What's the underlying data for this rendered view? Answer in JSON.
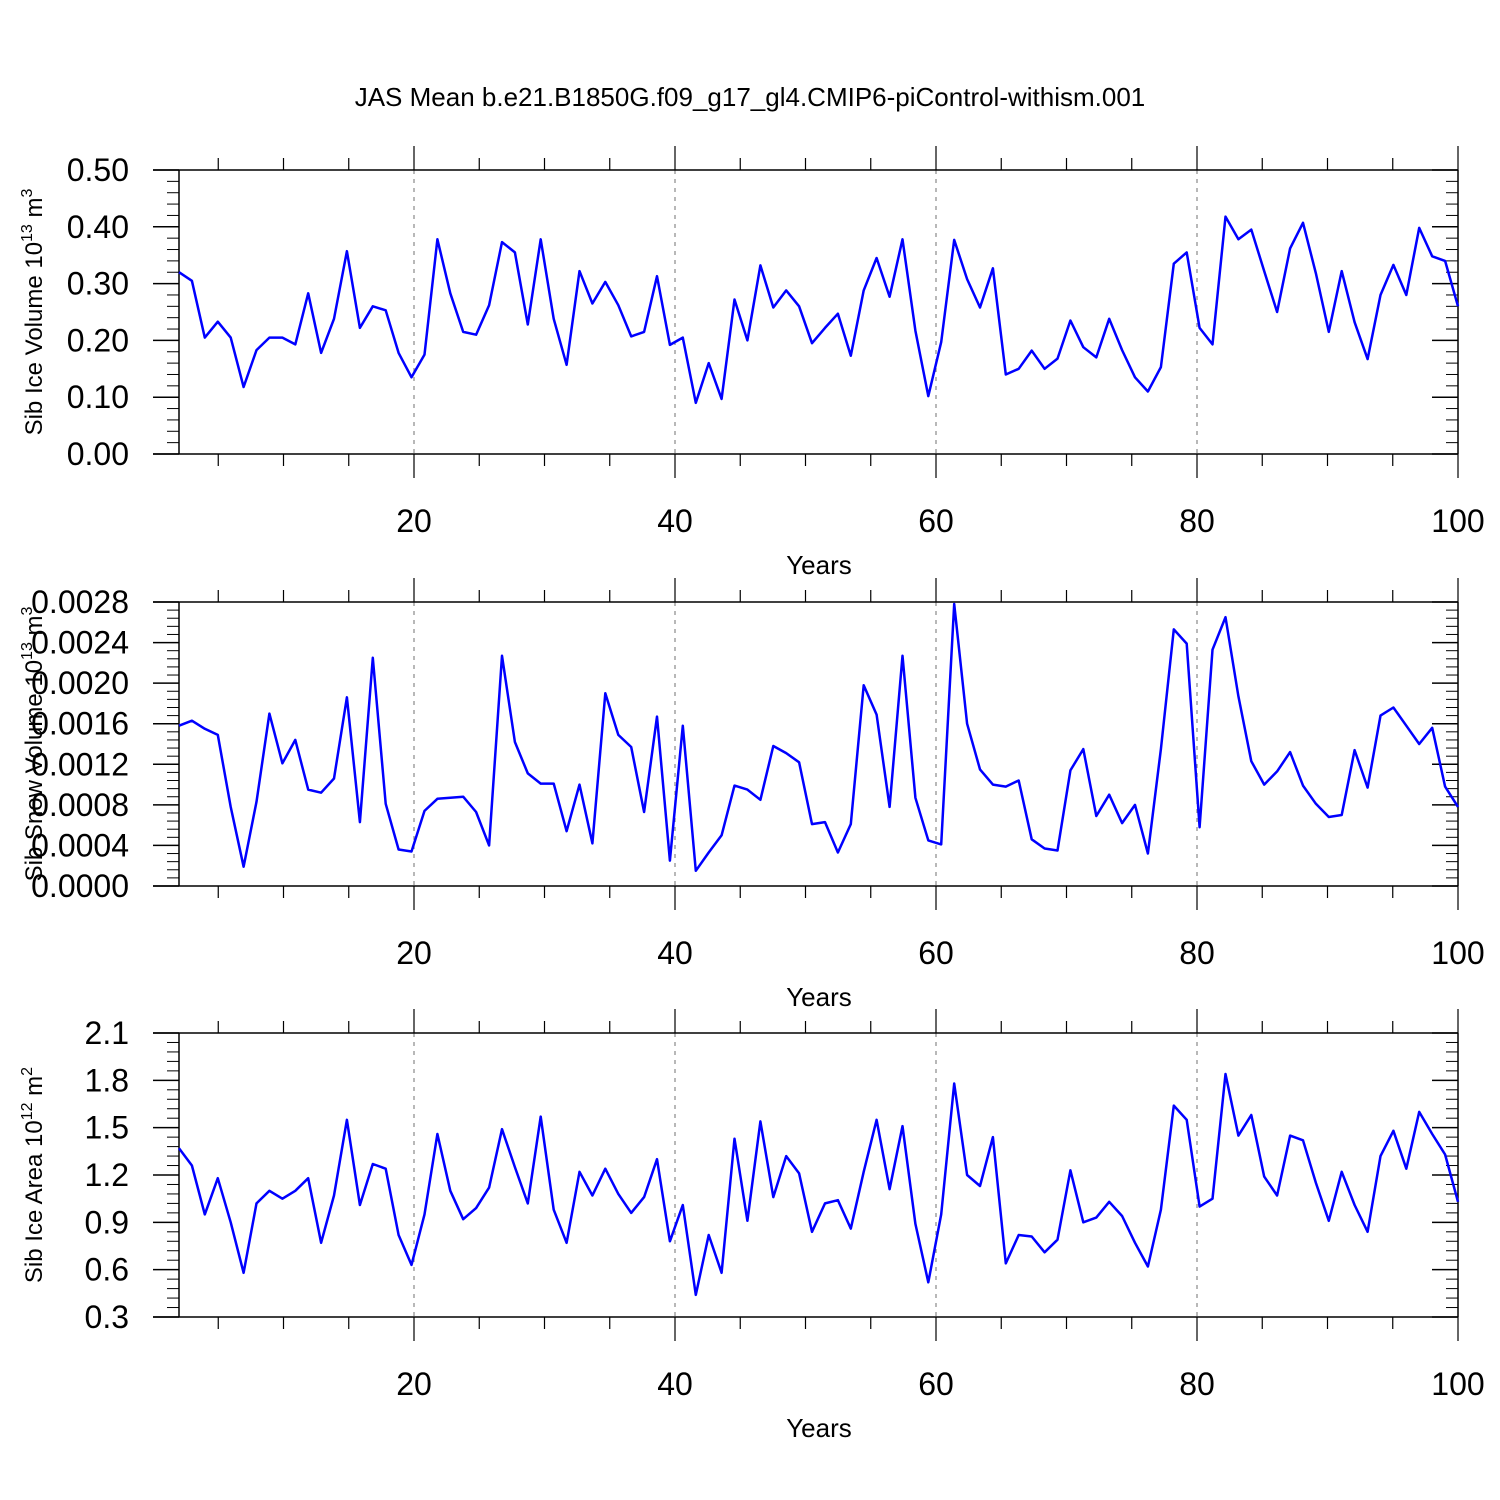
{
  "title": "JAS Mean b.e21.B1850G.f09_g17_gl4.CMIP6-piControl-withism.001",
  "colors": {
    "series": "#0000ff",
    "axis": "#000000",
    "grid": "#888888"
  },
  "chart_data": [
    {
      "type": "line",
      "ylabel_main": "Sib Ice Volume 10",
      "ylabel_exp": "13",
      "ylabel_unit": " m",
      "ylabel_unit_exp": "3",
      "xlabel": "Years",
      "xlim": [
        0,
        100
      ],
      "ylim": [
        0,
        0.5
      ],
      "yticks": [
        "0.00",
        "0.10",
        "0.20",
        "0.30",
        "0.40",
        "0.50"
      ],
      "xticks": [
        "20",
        "40",
        "60",
        "80",
        "100"
      ],
      "grid_x": [
        20,
        40,
        60,
        80
      ],
      "x_start": 0,
      "values": [
        0.32,
        0.305,
        0.205,
        0.233,
        0.205,
        0.118,
        0.183,
        0.205,
        0.205,
        0.193,
        0.283,
        0.178,
        0.238,
        0.357,
        0.222,
        0.26,
        0.253,
        0.178,
        0.135,
        0.175,
        0.378,
        0.283,
        0.215,
        0.21,
        0.262,
        0.373,
        0.355,
        0.228,
        0.378,
        0.238,
        0.157,
        0.322,
        0.265,
        0.303,
        0.262,
        0.207,
        0.215,
        0.313,
        0.192,
        0.205,
        0.09,
        0.16,
        0.097,
        0.272,
        0.2,
        0.332,
        0.258,
        0.288,
        0.26,
        0.195,
        0.222,
        0.247,
        0.173,
        0.288,
        0.345,
        0.277,
        0.378,
        0.217,
        0.102,
        0.197,
        0.377,
        0.308,
        0.258,
        0.327,
        0.14,
        0.15,
        0.182,
        0.15,
        0.168,
        0.235,
        0.188,
        0.17,
        0.238,
        0.183,
        0.135,
        0.11,
        0.153,
        0.335,
        0.355,
        0.222,
        0.193,
        0.418,
        0.378,
        0.395,
        0.322,
        0.25,
        0.362,
        0.407,
        0.318,
        0.215,
        0.322,
        0.232,
        0.167,
        0.28,
        0.333,
        0.28,
        0.398,
        0.348,
        0.34,
        0.26
      ]
    },
    {
      "type": "line",
      "ylabel_main": "Sib Snow Volume 10",
      "ylabel_exp": "13",
      "ylabel_unit": " m",
      "ylabel_unit_exp": "3",
      "xlabel": "Years",
      "xlim": [
        0,
        100
      ],
      "ylim": [
        0,
        0.0028
      ],
      "yticks": [
        "0.0000",
        "0.0004",
        "0.0008",
        "0.0012",
        "0.0016",
        "0.0020",
        "0.0024",
        "0.0028"
      ],
      "xticks": [
        "20",
        "40",
        "60",
        "80",
        "100"
      ],
      "grid_x": [
        20,
        40,
        60,
        80
      ],
      "x_start": 0,
      "values": [
        0.00158,
        0.00163,
        0.00155,
        0.00149,
        0.00078,
        0.00019,
        0.00083,
        0.0017,
        0.00121,
        0.00144,
        0.00095,
        0.00092,
        0.00106,
        0.00186,
        0.00063,
        0.00225,
        0.00081,
        0.00036,
        0.00034,
        0.00074,
        0.00086,
        0.00087,
        0.00088,
        0.00073,
        0.0004,
        0.00227,
        0.00142,
        0.00111,
        0.00101,
        0.00101,
        0.00054,
        0.001,
        0.00042,
        0.0019,
        0.00149,
        0.00137,
        0.00073,
        0.00167,
        0.00025,
        0.00158,
        0.00015,
        0.00033,
        0.0005,
        0.00099,
        0.00095,
        0.00085,
        0.00138,
        0.00131,
        0.00122,
        0.00061,
        0.00063,
        0.00033,
        0.00061,
        0.00198,
        0.00169,
        0.00078,
        0.00227,
        0.00087,
        0.00045,
        0.00041,
        0.00278,
        0.0016,
        0.00115,
        0.001,
        0.00098,
        0.00104,
        0.00046,
        0.00037,
        0.00035,
        0.00114,
        0.00135,
        0.00069,
        0.0009,
        0.00062,
        0.0008,
        0.00032,
        0.00135,
        0.00253,
        0.00239,
        0.00058,
        0.00233,
        0.00265,
        0.00187,
        0.00123,
        0.001,
        0.00113,
        0.00132,
        0.00099,
        0.00081,
        0.00068,
        0.0007,
        0.00134,
        0.00097,
        0.00168,
        0.00176,
        0.00158,
        0.0014,
        0.00156,
        0.00098,
        0.00078
      ]
    },
    {
      "type": "line",
      "ylabel_main": "Sib Ice Area 10",
      "ylabel_exp": "12",
      "ylabel_unit": " m",
      "ylabel_unit_exp": "2",
      "xlabel": "Years",
      "xlim": [
        0,
        100
      ],
      "ylim": [
        0.3,
        2.1
      ],
      "yticks": [
        "0.3",
        "0.6",
        "0.9",
        "1.2",
        "1.5",
        "1.8",
        "2.1"
      ],
      "xticks": [
        "20",
        "40",
        "60",
        "80",
        "100"
      ],
      "grid_x": [
        20,
        40,
        60,
        80
      ],
      "x_start": 0,
      "values": [
        1.37,
        1.26,
        0.95,
        1.18,
        0.9,
        0.58,
        1.02,
        1.1,
        1.05,
        1.1,
        1.18,
        0.77,
        1.07,
        1.55,
        1.01,
        1.27,
        1.24,
        0.82,
        0.63,
        0.95,
        1.46,
        1.1,
        0.92,
        0.99,
        1.12,
        1.49,
        1.25,
        1.02,
        1.57,
        0.98,
        0.77,
        1.22,
        1.07,
        1.24,
        1.08,
        0.96,
        1.06,
        1.3,
        0.78,
        1.01,
        0.44,
        0.82,
        0.58,
        1.43,
        0.91,
        1.54,
        1.06,
        1.32,
        1.21,
        0.84,
        1.02,
        1.04,
        0.86,
        1.22,
        1.55,
        1.11,
        1.51,
        0.89,
        0.52,
        0.95,
        1.78,
        1.2,
        1.13,
        1.44,
        0.64,
        0.82,
        0.81,
        0.71,
        0.79,
        1.23,
        0.9,
        0.93,
        1.03,
        0.94,
        0.77,
        0.62,
        0.98,
        1.64,
        1.55,
        1.0,
        1.05,
        1.84,
        1.45,
        1.58,
        1.19,
        1.07,
        1.45,
        1.42,
        1.15,
        0.91,
        1.22,
        1.01,
        0.84,
        1.32,
        1.48,
        1.24,
        1.6,
        1.46,
        1.33,
        1.03
      ]
    }
  ]
}
